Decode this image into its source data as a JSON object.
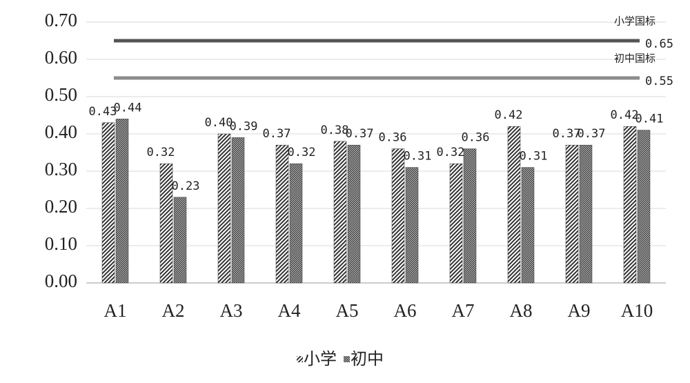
{
  "chart_data": {
    "type": "bar",
    "categories": [
      "A1",
      "A2",
      "A3",
      "A4",
      "A5",
      "A6",
      "A7",
      "A8",
      "A9",
      "A10"
    ],
    "series": [
      {
        "name": "小学",
        "color": "#333333",
        "pattern": "diagonal",
        "values": [
          0.43,
          0.32,
          0.4,
          0.37,
          0.38,
          0.36,
          0.32,
          0.42,
          0.37,
          0.42
        ],
        "value_labels": [
          "0.43",
          "0.32",
          "0.40",
          "0.37",
          "0.38",
          "0.36",
          "0.32",
          "0.42",
          "0.37",
          "0.42"
        ]
      },
      {
        "name": "初中",
        "color": "#333333",
        "pattern": "crosshatch",
        "values": [
          0.44,
          0.23,
          0.39,
          0.32,
          0.37,
          0.31,
          0.36,
          0.31,
          0.37,
          0.41
        ]
      }
    ],
    "reference_lines": [
      {
        "name": "小学国标",
        "value": 0.65,
        "color": "#555555"
      },
      {
        "name": "初中国标",
        "value": 0.55,
        "color": "#8c8c8c"
      }
    ],
    "ylim": [
      0,
      0.7
    ],
    "yticks": [
      {
        "value": 0,
        "label": "0.00"
      },
      {
        "value": 0.1,
        "label": "0.10"
      },
      {
        "value": 0.2,
        "label": "0.20"
      },
      {
        "value": 0.3,
        "label": "0.30"
      },
      {
        "value": 0.4,
        "label": "0.40"
      },
      {
        "value": 0.5,
        "label": "0.50"
      },
      {
        "value": 0.6,
        "label": "0.60"
      },
      {
        "value": 0.7,
        "label": "0.70"
      }
    ],
    "grid": true,
    "legend": "bottom"
  }
}
